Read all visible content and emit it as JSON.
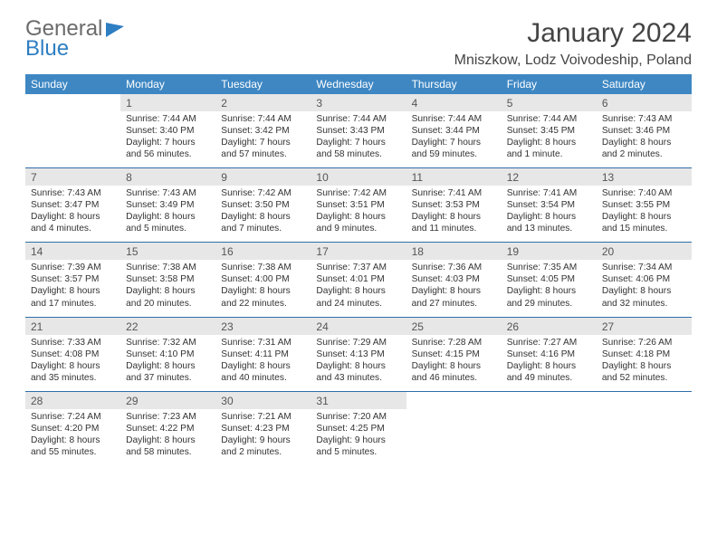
{
  "brand": {
    "line1": "General",
    "line2": "Blue"
  },
  "title": "January 2024",
  "location": "Mniszkow, Lodz Voivodeship, Poland",
  "colors": {
    "header_bg": "#3e87c3",
    "header_text": "#ffffff",
    "daynum_bg": "#e7e7e7",
    "rule": "#2f6ea8",
    "brand_gray": "#6b6b6b",
    "brand_blue": "#2f7ec2",
    "page_bg": "#ffffff",
    "text": "#333333"
  },
  "dow": [
    "Sunday",
    "Monday",
    "Tuesday",
    "Wednesday",
    "Thursday",
    "Friday",
    "Saturday"
  ],
  "weeks": [
    {
      "nums": [
        "",
        "1",
        "2",
        "3",
        "4",
        "5",
        "6"
      ],
      "cells": [
        "",
        "Sunrise: 7:44 AM\nSunset: 3:40 PM\nDaylight: 7 hours and 56 minutes.",
        "Sunrise: 7:44 AM\nSunset: 3:42 PM\nDaylight: 7 hours and 57 minutes.",
        "Sunrise: 7:44 AM\nSunset: 3:43 PM\nDaylight: 7 hours and 58 minutes.",
        "Sunrise: 7:44 AM\nSunset: 3:44 PM\nDaylight: 7 hours and 59 minutes.",
        "Sunrise: 7:44 AM\nSunset: 3:45 PM\nDaylight: 8 hours and 1 minute.",
        "Sunrise: 7:43 AM\nSunset: 3:46 PM\nDaylight: 8 hours and 2 minutes."
      ]
    },
    {
      "nums": [
        "7",
        "8",
        "9",
        "10",
        "11",
        "12",
        "13"
      ],
      "cells": [
        "Sunrise: 7:43 AM\nSunset: 3:47 PM\nDaylight: 8 hours and 4 minutes.",
        "Sunrise: 7:43 AM\nSunset: 3:49 PM\nDaylight: 8 hours and 5 minutes.",
        "Sunrise: 7:42 AM\nSunset: 3:50 PM\nDaylight: 8 hours and 7 minutes.",
        "Sunrise: 7:42 AM\nSunset: 3:51 PM\nDaylight: 8 hours and 9 minutes.",
        "Sunrise: 7:41 AM\nSunset: 3:53 PM\nDaylight: 8 hours and 11 minutes.",
        "Sunrise: 7:41 AM\nSunset: 3:54 PM\nDaylight: 8 hours and 13 minutes.",
        "Sunrise: 7:40 AM\nSunset: 3:55 PM\nDaylight: 8 hours and 15 minutes."
      ]
    },
    {
      "nums": [
        "14",
        "15",
        "16",
        "17",
        "18",
        "19",
        "20"
      ],
      "cells": [
        "Sunrise: 7:39 AM\nSunset: 3:57 PM\nDaylight: 8 hours and 17 minutes.",
        "Sunrise: 7:38 AM\nSunset: 3:58 PM\nDaylight: 8 hours and 20 minutes.",
        "Sunrise: 7:38 AM\nSunset: 4:00 PM\nDaylight: 8 hours and 22 minutes.",
        "Sunrise: 7:37 AM\nSunset: 4:01 PM\nDaylight: 8 hours and 24 minutes.",
        "Sunrise: 7:36 AM\nSunset: 4:03 PM\nDaylight: 8 hours and 27 minutes.",
        "Sunrise: 7:35 AM\nSunset: 4:05 PM\nDaylight: 8 hours and 29 minutes.",
        "Sunrise: 7:34 AM\nSunset: 4:06 PM\nDaylight: 8 hours and 32 minutes."
      ]
    },
    {
      "nums": [
        "21",
        "22",
        "23",
        "24",
        "25",
        "26",
        "27"
      ],
      "cells": [
        "Sunrise: 7:33 AM\nSunset: 4:08 PM\nDaylight: 8 hours and 35 minutes.",
        "Sunrise: 7:32 AM\nSunset: 4:10 PM\nDaylight: 8 hours and 37 minutes.",
        "Sunrise: 7:31 AM\nSunset: 4:11 PM\nDaylight: 8 hours and 40 minutes.",
        "Sunrise: 7:29 AM\nSunset: 4:13 PM\nDaylight: 8 hours and 43 minutes.",
        "Sunrise: 7:28 AM\nSunset: 4:15 PM\nDaylight: 8 hours and 46 minutes.",
        "Sunrise: 7:27 AM\nSunset: 4:16 PM\nDaylight: 8 hours and 49 minutes.",
        "Sunrise: 7:26 AM\nSunset: 4:18 PM\nDaylight: 8 hours and 52 minutes."
      ]
    },
    {
      "nums": [
        "28",
        "29",
        "30",
        "31",
        "",
        "",
        ""
      ],
      "cells": [
        "Sunrise: 7:24 AM\nSunset: 4:20 PM\nDaylight: 8 hours and 55 minutes.",
        "Sunrise: 7:23 AM\nSunset: 4:22 PM\nDaylight: 8 hours and 58 minutes.",
        "Sunrise: 7:21 AM\nSunset: 4:23 PM\nDaylight: 9 hours and 2 minutes.",
        "Sunrise: 7:20 AM\nSunset: 4:25 PM\nDaylight: 9 hours and 5 minutes.",
        "",
        "",
        ""
      ]
    }
  ]
}
